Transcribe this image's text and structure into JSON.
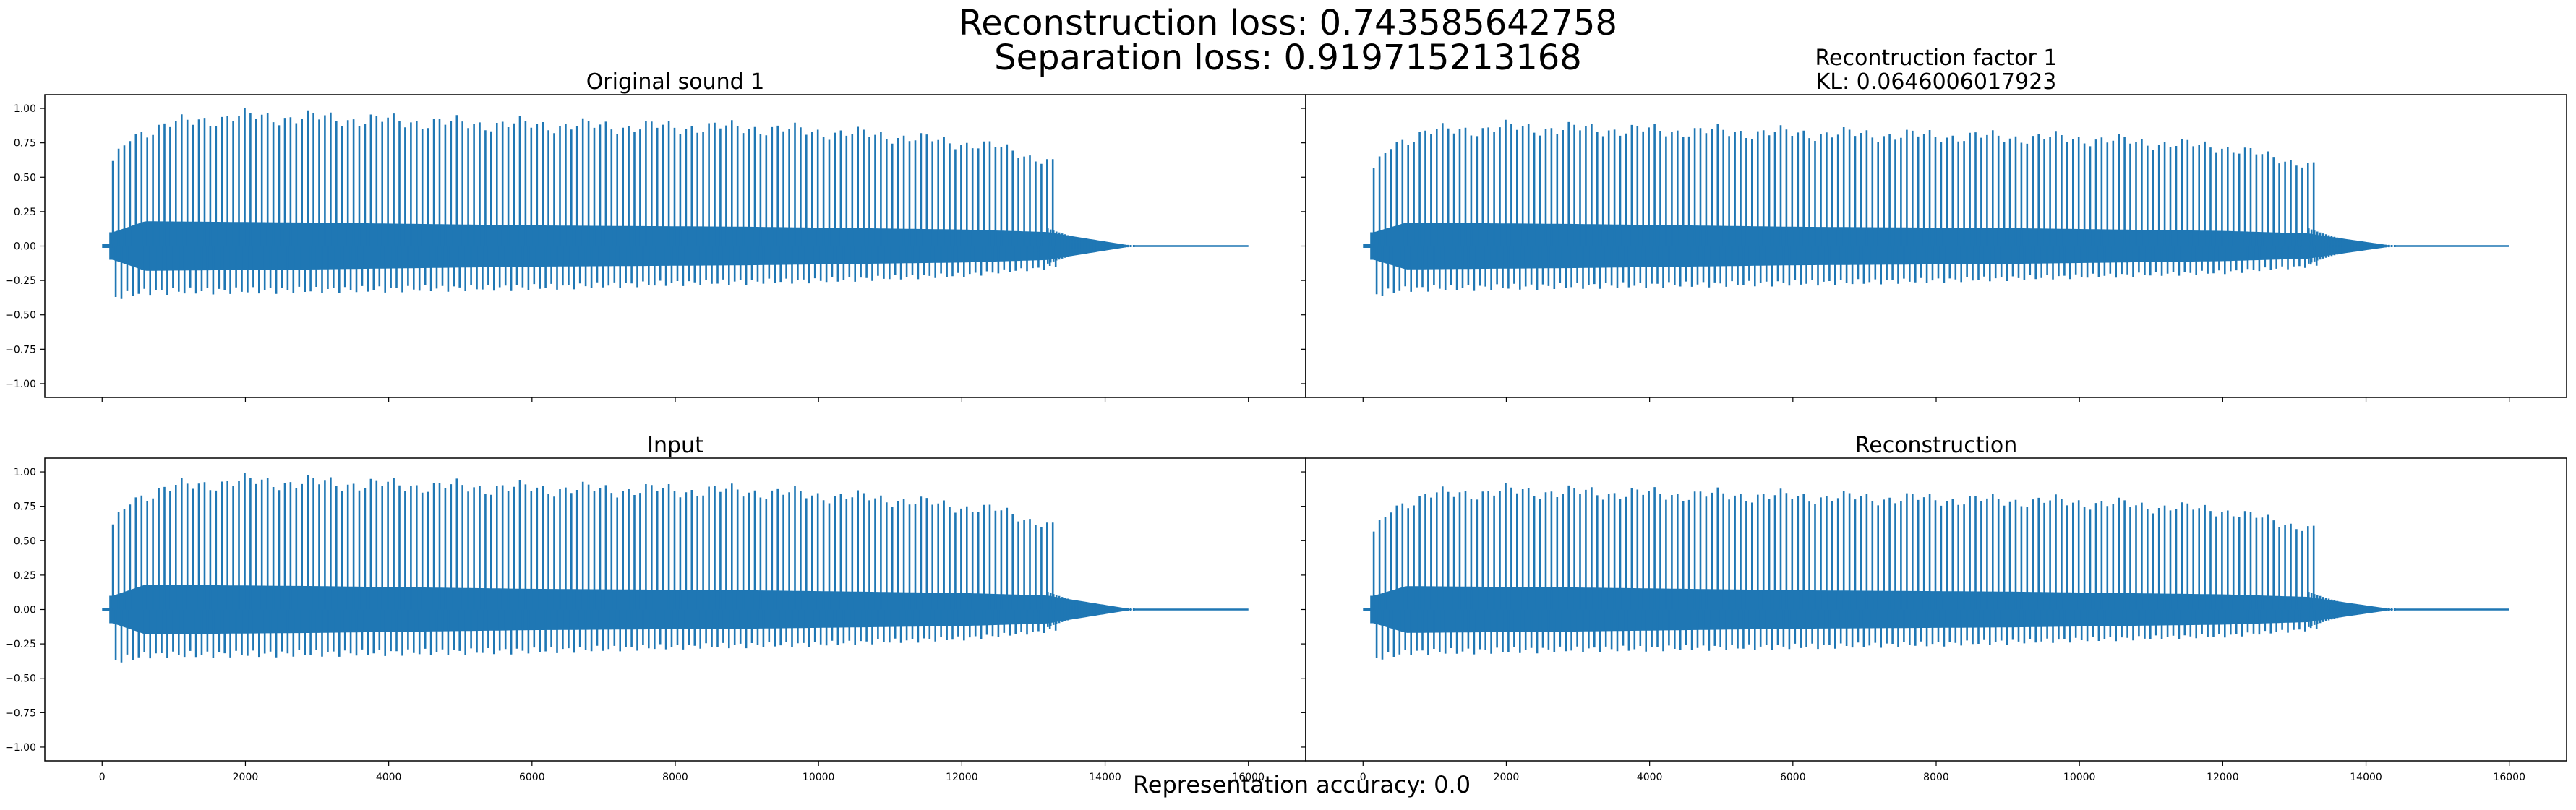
{
  "figure": {
    "suptitle_line1": "Reconstruction loss: 0.743585642758",
    "suptitle_line2": "Separation loss: 0.919715213168",
    "footer": "Representation accuracy: 0.0",
    "line_color": "#1f77b4"
  },
  "chart_data": [
    {
      "type": "line",
      "title": "Original sound 1",
      "xlim": [
        -800,
        16800
      ],
      "ylim": [
        -1.1,
        1.1
      ],
      "xticks": [
        0,
        2000,
        4000,
        6000,
        8000,
        10000,
        12000,
        14000,
        16000
      ],
      "yticks": [
        -1.0,
        -0.75,
        -0.5,
        -0.25,
        0.0,
        0.25,
        0.5,
        0.75,
        1.0
      ],
      "ytick_labels": [
        "−1.00",
        "−0.75",
        "−0.50",
        "−0.25",
        "0.00",
        "0.25",
        "0.50",
        "0.75",
        "1.00"
      ],
      "xtick_labels_visible": false,
      "ytick_labels_visible": true,
      "signal": {
        "onset": 100,
        "period": 80,
        "decay_start": 13200,
        "decay_end": 14400,
        "end": 16000,
        "peak_envelope": [
          [
            150,
            0.6
          ],
          [
            400,
            0.8
          ],
          [
            900,
            0.88
          ],
          [
            1800,
            0.94
          ],
          [
            3000,
            0.93
          ],
          [
            5000,
            0.89
          ],
          [
            7000,
            0.87
          ],
          [
            9000,
            0.86
          ],
          [
            11000,
            0.8
          ],
          [
            12500,
            0.72
          ],
          [
            13300,
            0.6
          ]
        ],
        "trough_envelope": [
          [
            150,
            -0.37
          ],
          [
            600,
            -0.33
          ],
          [
            3000,
            -0.32
          ],
          [
            6000,
            -0.3
          ],
          [
            8000,
            -0.27
          ],
          [
            10000,
            -0.25
          ],
          [
            12000,
            -0.21
          ],
          [
            13300,
            -0.15
          ]
        ],
        "body_amplitude": [
          [
            150,
            0.1
          ],
          [
            600,
            0.18
          ],
          [
            3000,
            0.17
          ],
          [
            6000,
            0.15
          ],
          [
            9000,
            0.14
          ],
          [
            12000,
            0.12
          ],
          [
            13300,
            0.1
          ]
        ]
      }
    },
    {
      "type": "line",
      "title": "Recontruction factor 1\nKL: 0.0646006017923",
      "xlim": [
        -800,
        16800
      ],
      "ylim": [
        -1.1,
        1.1
      ],
      "xticks": [
        0,
        2000,
        4000,
        6000,
        8000,
        10000,
        12000,
        14000,
        16000
      ],
      "yticks": [
        -1.0,
        -0.75,
        -0.5,
        -0.25,
        0.0,
        0.25,
        0.5,
        0.75,
        1.0
      ],
      "ytick_labels": [
        "−1.00",
        "−0.75",
        "−0.50",
        "−0.25",
        "0.00",
        "0.25",
        "0.50",
        "0.75",
        "1.00"
      ],
      "xtick_labels_visible": false,
      "ytick_labels_visible": false,
      "signal": {
        "onset": 100,
        "period": 80,
        "decay_start": 13200,
        "decay_end": 14400,
        "end": 16000,
        "peak_envelope": [
          [
            150,
            0.55
          ],
          [
            400,
            0.74
          ],
          [
            900,
            0.83
          ],
          [
            2000,
            0.86
          ],
          [
            4000,
            0.84
          ],
          [
            6000,
            0.82
          ],
          [
            8000,
            0.8
          ],
          [
            10000,
            0.78
          ],
          [
            12000,
            0.72
          ],
          [
            13300,
            0.58
          ]
        ],
        "trough_envelope": [
          [
            150,
            -0.35
          ],
          [
            600,
            -0.31
          ],
          [
            3000,
            -0.29
          ],
          [
            6000,
            -0.27
          ],
          [
            8000,
            -0.25
          ],
          [
            10000,
            -0.22
          ],
          [
            12000,
            -0.19
          ],
          [
            13300,
            -0.14
          ]
        ],
        "body_amplitude": [
          [
            150,
            0.1
          ],
          [
            600,
            0.17
          ],
          [
            3000,
            0.16
          ],
          [
            6000,
            0.14
          ],
          [
            9000,
            0.13
          ],
          [
            12000,
            0.11
          ],
          [
            13300,
            0.09
          ]
        ]
      }
    },
    {
      "type": "line",
      "title": "Input",
      "xlim": [
        -800,
        16800
      ],
      "ylim": [
        -1.1,
        1.1
      ],
      "xticks": [
        0,
        2000,
        4000,
        6000,
        8000,
        10000,
        12000,
        14000,
        16000
      ],
      "xtick_labels": [
        "0",
        "2000",
        "4000",
        "6000",
        "8000",
        "10000",
        "12000",
        "14000",
        "16000"
      ],
      "yticks": [
        -1.0,
        -0.75,
        -0.5,
        -0.25,
        0.0,
        0.25,
        0.5,
        0.75,
        1.0
      ],
      "ytick_labels": [
        "−1.00",
        "−0.75",
        "−0.50",
        "−0.25",
        "0.00",
        "0.25",
        "0.50",
        "0.75",
        "1.00"
      ],
      "xtick_labels_visible": true,
      "ytick_labels_visible": true,
      "signal": {
        "onset": 100,
        "period": 80,
        "decay_start": 13200,
        "decay_end": 14400,
        "end": 16000,
        "peak_envelope": [
          [
            150,
            0.6
          ],
          [
            400,
            0.8
          ],
          [
            900,
            0.88
          ],
          [
            1800,
            0.93
          ],
          [
            3000,
            0.92
          ],
          [
            5000,
            0.89
          ],
          [
            7000,
            0.87
          ],
          [
            9000,
            0.86
          ],
          [
            11000,
            0.8
          ],
          [
            12500,
            0.72
          ],
          [
            13300,
            0.6
          ]
        ],
        "trough_envelope": [
          [
            150,
            -0.37
          ],
          [
            600,
            -0.33
          ],
          [
            3000,
            -0.32
          ],
          [
            6000,
            -0.3
          ],
          [
            8000,
            -0.27
          ],
          [
            10000,
            -0.25
          ],
          [
            12000,
            -0.21
          ],
          [
            13300,
            -0.15
          ]
        ],
        "body_amplitude": [
          [
            150,
            0.1
          ],
          [
            600,
            0.18
          ],
          [
            3000,
            0.17
          ],
          [
            6000,
            0.15
          ],
          [
            9000,
            0.14
          ],
          [
            12000,
            0.12
          ],
          [
            13300,
            0.1
          ]
        ]
      }
    },
    {
      "type": "line",
      "title": "Reconstruction",
      "xlim": [
        -800,
        16800
      ],
      "ylim": [
        -1.1,
        1.1
      ],
      "xticks": [
        0,
        2000,
        4000,
        6000,
        8000,
        10000,
        12000,
        14000,
        16000
      ],
      "xtick_labels": [
        "0",
        "2000",
        "4000",
        "6000",
        "8000",
        "10000",
        "12000",
        "14000",
        "16000"
      ],
      "yticks": [
        -1.0,
        -0.75,
        -0.5,
        -0.25,
        0.0,
        0.25,
        0.5,
        0.75,
        1.0
      ],
      "ytick_labels": [
        "−1.00",
        "−0.75",
        "−0.50",
        "−0.25",
        "0.00",
        "0.25",
        "0.50",
        "0.75",
        "1.00"
      ],
      "xtick_labels_visible": true,
      "ytick_labels_visible": false,
      "signal": {
        "onset": 100,
        "period": 80,
        "decay_start": 13200,
        "decay_end": 14400,
        "end": 16000,
        "peak_envelope": [
          [
            150,
            0.55
          ],
          [
            400,
            0.74
          ],
          [
            900,
            0.83
          ],
          [
            2000,
            0.86
          ],
          [
            4000,
            0.84
          ],
          [
            6000,
            0.82
          ],
          [
            8000,
            0.8
          ],
          [
            10000,
            0.78
          ],
          [
            12000,
            0.72
          ],
          [
            13300,
            0.58
          ]
        ],
        "trough_envelope": [
          [
            150,
            -0.35
          ],
          [
            600,
            -0.31
          ],
          [
            3000,
            -0.29
          ],
          [
            6000,
            -0.27
          ],
          [
            8000,
            -0.25
          ],
          [
            10000,
            -0.22
          ],
          [
            12000,
            -0.19
          ],
          [
            13300,
            -0.14
          ]
        ],
        "body_amplitude": [
          [
            150,
            0.1
          ],
          [
            600,
            0.17
          ],
          [
            3000,
            0.16
          ],
          [
            6000,
            0.14
          ],
          [
            9000,
            0.13
          ],
          [
            12000,
            0.11
          ],
          [
            13300,
            0.09
          ]
        ]
      }
    }
  ]
}
